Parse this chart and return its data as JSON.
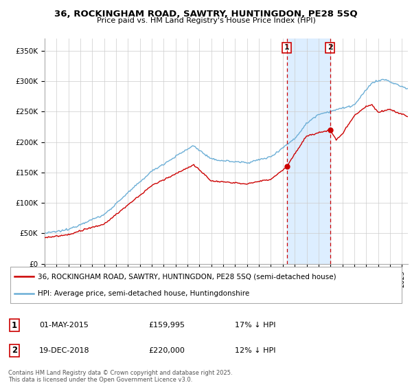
{
  "title": "36, ROCKINGHAM ROAD, SAWTRY, HUNTINGDON, PE28 5SQ",
  "subtitle": "Price paid vs. HM Land Registry's House Price Index (HPI)",
  "ylabel_ticks": [
    "£0",
    "£50K",
    "£100K",
    "£150K",
    "£200K",
    "£250K",
    "£300K",
    "£350K"
  ],
  "ytick_values": [
    0,
    50000,
    100000,
    150000,
    200000,
    250000,
    300000,
    350000
  ],
  "ylim": [
    0,
    370000
  ],
  "sale1_x": 2015.33,
  "sale1_price": 159995,
  "sale2_x": 2018.96,
  "sale2_price": 220000,
  "legend_line1": "36, ROCKINGHAM ROAD, SAWTRY, HUNTINGDON, PE28 5SQ (semi-detached house)",
  "legend_line2": "HPI: Average price, semi-detached house, Huntingdonshire",
  "ann1_label": "1",
  "ann1_date": "01-MAY-2015",
  "ann1_price": "£159,995",
  "ann1_hpi": "17% ↓ HPI",
  "ann2_label": "2",
  "ann2_date": "19-DEC-2018",
  "ann2_price": "£220,000",
  "ann2_hpi": "12% ↓ HPI",
  "footer": "Contains HM Land Registry data © Crown copyright and database right 2025.\nThis data is licensed under the Open Government Licence v3.0.",
  "hpi_color": "#6baed6",
  "price_color": "#cc0000",
  "shade_color": "#ddeeff",
  "background_color": "#ffffff"
}
